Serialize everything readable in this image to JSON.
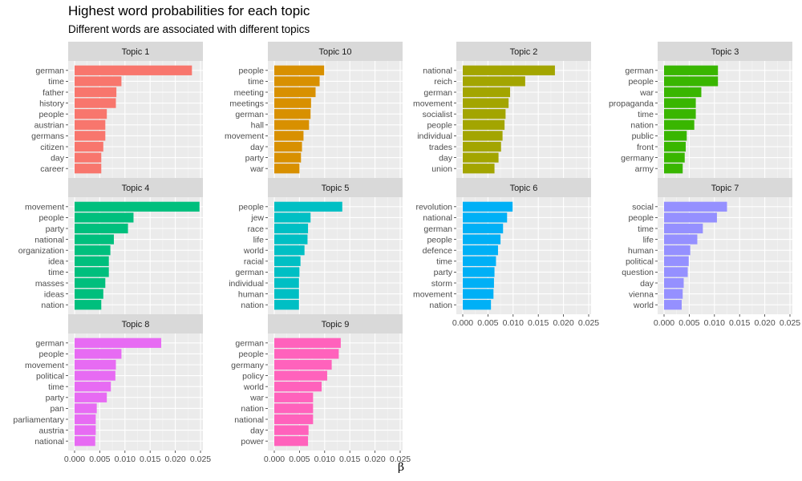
{
  "title": "Highest word probabilities for each topic",
  "subtitle": "Different words are associated with different topics",
  "chart_data": {
    "type": "bar",
    "orientation": "horizontal",
    "faceted": true,
    "title": "Highest word probabilities for each topic",
    "subtitle": "Different words are associated with different topics",
    "xlabel": "β",
    "ylabel": "",
    "xlim": [
      0,
      0.025
    ],
    "x_ticks": [
      "0.000",
      "0.005",
      "0.010",
      "0.015",
      "0.020",
      "0.025"
    ],
    "grid": true,
    "legend": "none",
    "facets": [
      {
        "name": "Topic 1",
        "color": "#F8766D",
        "terms": [
          "german",
          "time",
          "father",
          "history",
          "people",
          "austrian",
          "germans",
          "citizen",
          "day",
          "career"
        ],
        "values": [
          0.0233,
          0.0093,
          0.0083,
          0.0082,
          0.0064,
          0.0061,
          0.0061,
          0.0057,
          0.0053,
          0.0053
        ]
      },
      {
        "name": "Topic 10",
        "color": "#D89000",
        "terms": [
          "people",
          "time",
          "meeting",
          "meetings",
          "german",
          "hall",
          "movement",
          "day",
          "party",
          "war"
        ],
        "values": [
          0.0099,
          0.009,
          0.0082,
          0.0073,
          0.0072,
          0.0069,
          0.0058,
          0.0055,
          0.0053,
          0.005
        ]
      },
      {
        "name": "Topic 2",
        "color": "#A3A500",
        "terms": [
          "national",
          "reich",
          "german",
          "movement",
          "socialist",
          "people",
          "individual",
          "trades",
          "day",
          "union"
        ],
        "values": [
          0.0183,
          0.0124,
          0.0094,
          0.0091,
          0.0085,
          0.0083,
          0.0079,
          0.0076,
          0.0071,
          0.0063
        ]
      },
      {
        "name": "Topic 3",
        "color": "#39B600",
        "terms": [
          "german",
          "people",
          "war",
          "propaganda",
          "time",
          "nation",
          "public",
          "front",
          "germany",
          "army"
        ],
        "values": [
          0.0107,
          0.0107,
          0.0074,
          0.0063,
          0.0063,
          0.006,
          0.0045,
          0.0043,
          0.0041,
          0.0037
        ]
      },
      {
        "name": "Topic 4",
        "color": "#00BF7D",
        "terms": [
          "movement",
          "people",
          "party",
          "national",
          "organization",
          "idea",
          "time",
          "masses",
          "ideas",
          "nation"
        ],
        "values": [
          0.0248,
          0.0117,
          0.0106,
          0.0078,
          0.0071,
          0.0068,
          0.0068,
          0.0061,
          0.0057,
          0.0053
        ]
      },
      {
        "name": "Topic 5",
        "color": "#00BFC4",
        "terms": [
          "people",
          "jew",
          "race",
          "life",
          "world",
          "racial",
          "german",
          "individual",
          "human",
          "nation"
        ],
        "values": [
          0.0135,
          0.0072,
          0.0067,
          0.0066,
          0.006,
          0.0052,
          0.005,
          0.0049,
          0.0049,
          0.0049
        ]
      },
      {
        "name": "Topic 6",
        "color": "#00B0F6",
        "terms": [
          "revolution",
          "national",
          "german",
          "people",
          "defence",
          "time",
          "party",
          "storm",
          "movement",
          "nation"
        ],
        "values": [
          0.0099,
          0.0088,
          0.008,
          0.0075,
          0.007,
          0.0066,
          0.0063,
          0.0062,
          0.0061,
          0.0056
        ]
      },
      {
        "name": "Topic 7",
        "color": "#9590FF",
        "terms": [
          "social",
          "people",
          "time",
          "life",
          "human",
          "political",
          "question",
          "day",
          "vienna",
          "world"
        ],
        "values": [
          0.0125,
          0.0105,
          0.0077,
          0.0066,
          0.0052,
          0.0049,
          0.0047,
          0.0039,
          0.0037,
          0.0035
        ]
      },
      {
        "name": "Topic 8",
        "color": "#E76BF3",
        "terms": [
          "german",
          "people",
          "movement",
          "political",
          "time",
          "party",
          "pan",
          "parliamentary",
          "austria",
          "national"
        ],
        "values": [
          0.0172,
          0.0093,
          0.0082,
          0.0081,
          0.0072,
          0.0064,
          0.0044,
          0.0042,
          0.0042,
          0.0041
        ]
      },
      {
        "name": "Topic 9",
        "color": "#FF62BC",
        "terms": [
          "german",
          "people",
          "germany",
          "policy",
          "world",
          "war",
          "nation",
          "national",
          "day",
          "power"
        ],
        "values": [
          0.0132,
          0.0128,
          0.0114,
          0.0105,
          0.0094,
          0.0077,
          0.0077,
          0.0077,
          0.0068,
          0.0067
        ]
      }
    ]
  }
}
